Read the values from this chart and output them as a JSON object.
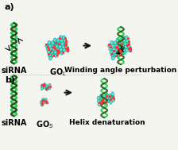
{
  "background_color": "#f5f5f0",
  "panel_a_label": "a)",
  "panel_b_label": "b)",
  "label_sirna": "siRNA",
  "label_go_s": "GO$_S$",
  "label_go_l": "GO$_L$",
  "label_result_a": "Helix denaturation",
  "label_result_b": "Winding angle perturbation",
  "arrow_color": "#111111",
  "helix_green": "#22cc44",
  "helix_dark": "#225522",
  "go_cyan": "#44ddcc",
  "go_hex_edge": "#008888",
  "red_dot": "#ff3333",
  "label_fontsize": 7,
  "panel_label_fontsize": 8,
  "title_fontsize": 6.5,
  "fig_width": 2.24,
  "fig_height": 1.89,
  "dpi": 100
}
